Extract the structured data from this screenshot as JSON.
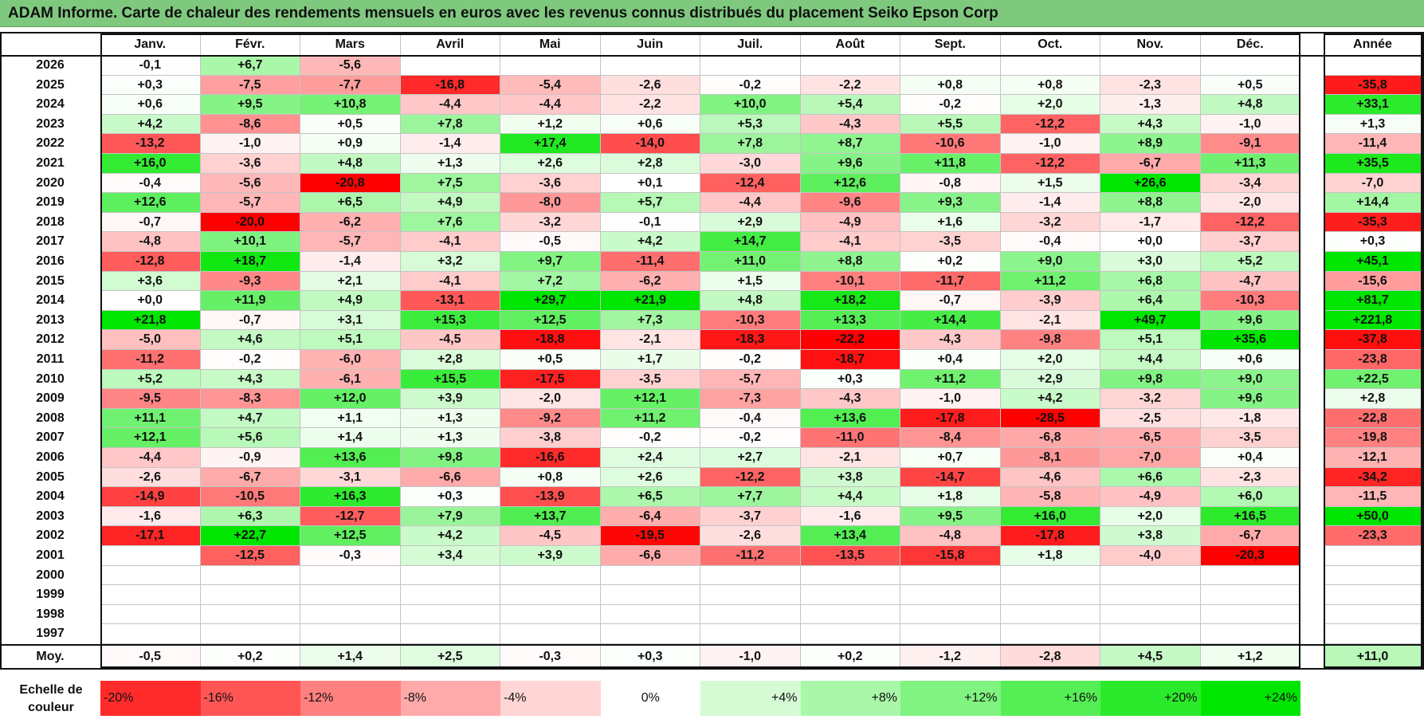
{
  "title": "ADAM Informe. Carte de chaleur des rendements mensuels en euros avec les revenus connus distribués du placement Seiko Epson Corp",
  "legend_label": "Echelle de couleur",
  "colors": {
    "title_bg": "#7fc97f",
    "red": "#ff0000",
    "green": "#00e600",
    "white": "#ffffff"
  },
  "chart_data": {
    "type": "heatmap",
    "title": "ADAM Informe. Carte de chaleur des rendements mensuels en euros avec les revenus connus distribués du placement Seiko Epson Corp",
    "months": [
      "Janv.",
      "Févr.",
      "Mars",
      "Avril",
      "Mai",
      "Juin",
      "Juil.",
      "Août",
      "Sept.",
      "Oct.",
      "Nov.",
      "Déc."
    ],
    "year_header": "Année",
    "avg_label": "Moy.",
    "rows": [
      {
        "year": "2026",
        "values": [
          "-0,1",
          "+6,7",
          "-5,6",
          "",
          "",
          "",
          "",
          "",
          "",
          "",
          "",
          ""
        ],
        "annual": ""
      },
      {
        "year": "2025",
        "values": [
          "+0,3",
          "-7,5",
          "-7,7",
          "-16,8",
          "-5,4",
          "-2,6",
          "-0,2",
          "-2,2",
          "+0,8",
          "+0,8",
          "-2,3",
          "+0,5"
        ],
        "annual": "-35,8"
      },
      {
        "year": "2024",
        "values": [
          "+0,6",
          "+9,5",
          "+10,8",
          "-4,4",
          "-4,4",
          "-2,2",
          "+10,0",
          "+5,4",
          "-0,2",
          "+2,0",
          "-1,3",
          "+4,8"
        ],
        "annual": "+33,1"
      },
      {
        "year": "2023",
        "values": [
          "+4,2",
          "-8,6",
          "+0,5",
          "+7,8",
          "+1,2",
          "+0,6",
          "+5,3",
          "-4,3",
          "+5,5",
          "-12,2",
          "+4,3",
          "-1,0"
        ],
        "annual": "+1,3"
      },
      {
        "year": "2022",
        "values": [
          "-13,2",
          "-1,0",
          "+0,9",
          "-1,4",
          "+17,4",
          "-14,0",
          "+7,8",
          "+8,7",
          "-10,6",
          "-1,0",
          "+8,9",
          "-9,1"
        ],
        "annual": "-11,4"
      },
      {
        "year": "2021",
        "values": [
          "+16,0",
          "-3,6",
          "+4,8",
          "+1,3",
          "+2,6",
          "+2,8",
          "-3,0",
          "+9,6",
          "+11,8",
          "-12,2",
          "-6,7",
          "+11,3"
        ],
        "annual": "+35,5"
      },
      {
        "year": "2020",
        "values": [
          "-0,4",
          "-5,6",
          "-20,8",
          "+7,5",
          "-3,6",
          "+0,1",
          "-12,4",
          "+12,6",
          "-0,8",
          "+1,5",
          "+26,6",
          "-3,4"
        ],
        "annual": "-7,0"
      },
      {
        "year": "2019",
        "values": [
          "+12,6",
          "-5,7",
          "+6,5",
          "+4,9",
          "-8,0",
          "+5,7",
          "-4,4",
          "-9,6",
          "+9,3",
          "-1,4",
          "+8,8",
          "-2,0"
        ],
        "annual": "+14,4"
      },
      {
        "year": "2018",
        "values": [
          "-0,7",
          "-20,0",
          "-6,2",
          "+7,6",
          "-3,2",
          "-0,1",
          "+2,9",
          "-4,9",
          "+1,6",
          "-3,2",
          "-1,7",
          "-12,2"
        ],
        "annual": "-35,3"
      },
      {
        "year": "2017",
        "values": [
          "-4,8",
          "+10,1",
          "-5,7",
          "-4,1",
          "-0,5",
          "+4,2",
          "+14,7",
          "-4,1",
          "-3,5",
          "-0,4",
          "+0,0",
          "-3,7"
        ],
        "annual": "+0,3"
      },
      {
        "year": "2016",
        "values": [
          "-12,8",
          "+18,7",
          "-1,4",
          "+3,2",
          "+9,7",
          "-11,4",
          "+11,0",
          "+8,8",
          "+0,2",
          "+9,0",
          "+3,0",
          "+5,2"
        ],
        "annual": "+45,1"
      },
      {
        "year": "2015",
        "values": [
          "+3,6",
          "-9,3",
          "+2,1",
          "-4,1",
          "+7,2",
          "-6,2",
          "+1,5",
          "-10,1",
          "-11,7",
          "+11,2",
          "+6,8",
          "-4,7"
        ],
        "annual": "-15,6"
      },
      {
        "year": "2014",
        "values": [
          "+0,0",
          "+11,9",
          "+4,9",
          "-13,1",
          "+29,7",
          "+21,9",
          "+4,8",
          "+18,2",
          "-0,7",
          "-3,9",
          "+6,4",
          "-10,3"
        ],
        "annual": "+81,7"
      },
      {
        "year": "2013",
        "values": [
          "+21,8",
          "-0,7",
          "+3,1",
          "+15,3",
          "+12,5",
          "+7,3",
          "-10,3",
          "+13,3",
          "+14,4",
          "-2,1",
          "+49,7",
          "+9,6"
        ],
        "annual": "+221,8"
      },
      {
        "year": "2012",
        "values": [
          "-5,0",
          "+4,6",
          "+5,1",
          "-4,5",
          "-18,8",
          "-2,1",
          "-18,3",
          "-22,2",
          "-4,3",
          "-9,8",
          "+5,1",
          "+35,6"
        ],
        "annual": "-37,8"
      },
      {
        "year": "2011",
        "values": [
          "-11,2",
          "-0,2",
          "-6,0",
          "+2,8",
          "+0,5",
          "+1,7",
          "-0,2",
          "-18,7",
          "+0,4",
          "+2,0",
          "+4,4",
          "+0,6"
        ],
        "annual": "-23,8"
      },
      {
        "year": "2010",
        "values": [
          "+5,2",
          "+4,3",
          "-6,1",
          "+15,5",
          "-17,5",
          "-3,5",
          "-5,7",
          "+0,3",
          "+11,2",
          "+2,9",
          "+9,8",
          "+9,0"
        ],
        "annual": "+22,5"
      },
      {
        "year": "2009",
        "values": [
          "-9,5",
          "-8,3",
          "+12,0",
          "+3,9",
          "-2,0",
          "+12,1",
          "-7,3",
          "-4,3",
          "-1,0",
          "+4,2",
          "-3,2",
          "+9,6"
        ],
        "annual": "+2,8"
      },
      {
        "year": "2008",
        "values": [
          "+11,1",
          "+4,7",
          "+1,1",
          "+1,3",
          "-9,2",
          "+11,2",
          "-0,4",
          "+13,6",
          "-17,8",
          "-28,5",
          "-2,5",
          "-1,8"
        ],
        "annual": "-22,8"
      },
      {
        "year": "2007",
        "values": [
          "+12,1",
          "+5,6",
          "+1,4",
          "+1,3",
          "-3,8",
          "-0,2",
          "-0,2",
          "-11,0",
          "-8,4",
          "-6,8",
          "-6,5",
          "-3,5"
        ],
        "annual": "-19,8"
      },
      {
        "year": "2006",
        "values": [
          "-4,4",
          "-0,9",
          "+13,6",
          "+9,8",
          "-16,6",
          "+2,4",
          "+2,7",
          "-2,1",
          "+0,7",
          "-8,1",
          "-7,0",
          "+0,4"
        ],
        "annual": "-12,1"
      },
      {
        "year": "2005",
        "values": [
          "-2,6",
          "-6,7",
          "-3,1",
          "-6,6",
          "+0,8",
          "+2,6",
          "-12,2",
          "+3,8",
          "-14,7",
          "-4,6",
          "+6,6",
          "-2,3"
        ],
        "annual": "-34,2"
      },
      {
        "year": "2004",
        "values": [
          "-14,9",
          "-10,5",
          "+16,3",
          "+0,3",
          "-13,9",
          "+6,5",
          "+7,7",
          "+4,4",
          "+1,8",
          "-5,8",
          "-4,9",
          "+6,0"
        ],
        "annual": "-11,5"
      },
      {
        "year": "2003",
        "values": [
          "-1,6",
          "+6,3",
          "-12,7",
          "+7,9",
          "+13,7",
          "-6,4",
          "-3,7",
          "-1,6",
          "+9,5",
          "+16,0",
          "+2,0",
          "+16,5"
        ],
        "annual": "+50,0"
      },
      {
        "year": "2002",
        "values": [
          "-17,1",
          "+22,7",
          "+12,5",
          "+4,2",
          "-4,5",
          "-19,5",
          "-2,6",
          "+13,4",
          "-4,8",
          "-17,8",
          "+3,8",
          "-6,7"
        ],
        "annual": "-23,3"
      },
      {
        "year": "2001",
        "values": [
          "",
          "-12,5",
          "-0,3",
          "+3,4",
          "+3,9",
          "-6,6",
          "-11,2",
          "-13,5",
          "-15,8",
          "+1,8",
          "-4,0",
          "-20,3"
        ],
        "annual": ""
      },
      {
        "year": "2000",
        "values": [
          "",
          "",
          "",
          "",
          "",
          "",
          "",
          "",
          "",
          "",
          "",
          ""
        ],
        "annual": ""
      },
      {
        "year": "1999",
        "values": [
          "",
          "",
          "",
          "",
          "",
          "",
          "",
          "",
          "",
          "",
          "",
          ""
        ],
        "annual": ""
      },
      {
        "year": "1998",
        "values": [
          "",
          "",
          "",
          "",
          "",
          "",
          "",
          "",
          "",
          "",
          "",
          ""
        ],
        "annual": ""
      },
      {
        "year": "1997",
        "values": [
          "",
          "",
          "",
          "",
          "",
          "",
          "",
          "",
          "",
          "",
          "",
          ""
        ],
        "annual": ""
      }
    ],
    "averages": [
      "-0,5",
      "+0,2",
      "+1,4",
      "+2,5",
      "-0,3",
      "+0,3",
      "-1,0",
      "+0,2",
      "-1,2",
      "-2,8",
      "+4,5",
      "+1,2"
    ],
    "annual_average": "+11,0",
    "scale": [
      "-20%",
      "-16%",
      "-12%",
      "-8%",
      "-4%",
      "0%",
      "+4%",
      "+8%",
      "+12%",
      "+16%",
      "+20%",
      "+24%"
    ],
    "scale_values": [
      -20,
      -16,
      -12,
      -8,
      -4,
      0,
      4,
      8,
      12,
      16,
      20,
      24
    ]
  }
}
